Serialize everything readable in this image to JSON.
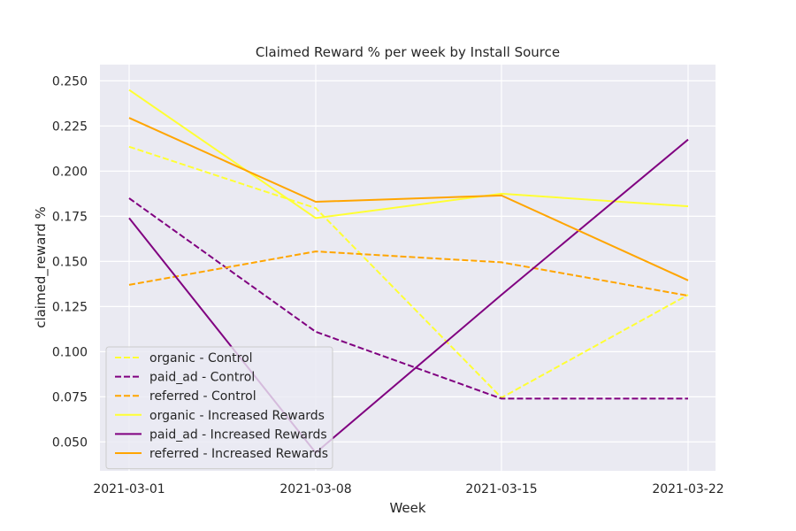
{
  "chart_data": {
    "type": "line",
    "title": "Claimed Reward % per week by Install Source",
    "xlabel": "Week",
    "ylabel": "claimed_reward %",
    "categories": [
      "2021-03-01",
      "2021-03-08",
      "2021-03-15",
      "2021-03-22"
    ],
    "yticks": [
      "0.050",
      "0.075",
      "0.100",
      "0.125",
      "0.150",
      "0.175",
      "0.200",
      "0.225",
      "0.250"
    ],
    "ylim": [
      0.034,
      0.259
    ],
    "grid": true,
    "legend_position": "lower-left",
    "series": [
      {
        "name": "organic - Control",
        "color": "#ffff33",
        "dash": true,
        "values": [
          0.2135,
          0.1795,
          0.0745,
          0.1315
        ]
      },
      {
        "name": "paid_ad - Control",
        "color": "#800080",
        "dash": true,
        "values": [
          0.185,
          0.111,
          0.074,
          0.074
        ]
      },
      {
        "name": "referred - Control",
        "color": "#ffa500",
        "dash": true,
        "values": [
          0.137,
          0.1555,
          0.1495,
          0.131
        ]
      },
      {
        "name": "organic - Increased Rewards",
        "color": "#ffff33",
        "dash": false,
        "values": [
          0.245,
          0.174,
          0.1875,
          0.1805
        ]
      },
      {
        "name": "paid_ad - Increased Rewards",
        "color": "#800080",
        "dash": false,
        "values": [
          0.174,
          0.044,
          0.1315,
          0.2175
        ]
      },
      {
        "name": "referred - Increased Rewards",
        "color": "#ffa500",
        "dash": false,
        "values": [
          0.2295,
          0.183,
          0.1865,
          0.1395
        ]
      }
    ]
  },
  "style": {
    "plot_background": "#eaeaf2",
    "grid_color": "#ffffff",
    "text_color": "#262626"
  }
}
